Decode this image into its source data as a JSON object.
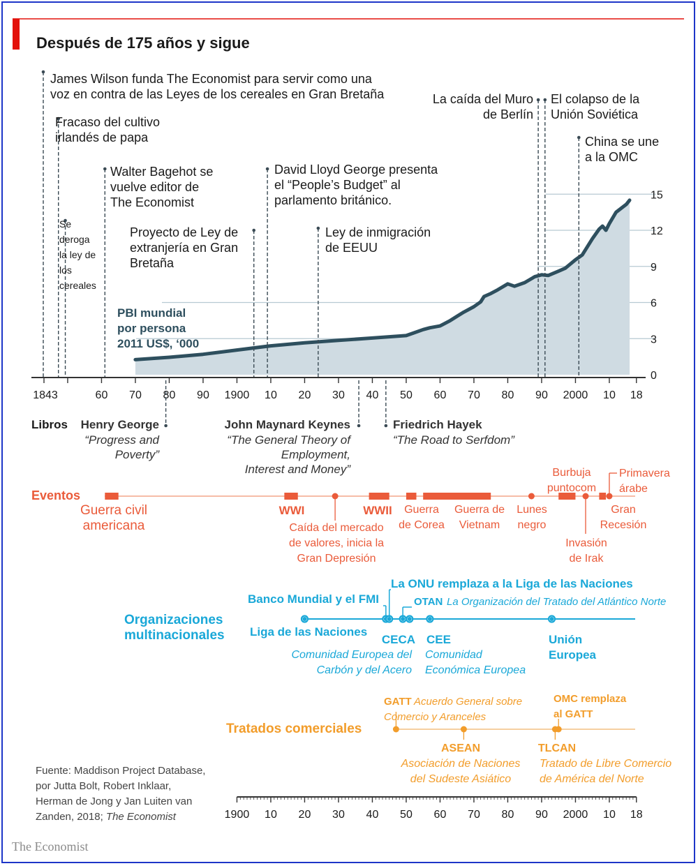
{
  "title": "Después de 175 años y sigue",
  "colors": {
    "accent_red": "#e3120b",
    "dark_blue": "#2e4f5e",
    "area": "#cfdbe2",
    "grid": "#b6c9d2",
    "events": "#ea5b3a",
    "events_bar": "#f3a58a",
    "orgs": "#1aa8d8",
    "trade": "#f29d2b",
    "ink": "#1a1a1a"
  },
  "chart_data": {
    "type": "area",
    "title": "Después de 175 años y sigue",
    "series_label": [
      "PBI mundial",
      "por persona",
      "2011 US$, ‘000"
    ],
    "xlabel": "",
    "ylabel": "PBI mundial por persona 2011 US$, ‘000",
    "xlim": [
      1843,
      2018
    ],
    "ylim": [
      0,
      15
    ],
    "x_ticks": [
      {
        "year": 1843,
        "label": "1843"
      },
      {
        "year": 1860,
        "label": "60"
      },
      {
        "year": 1870,
        "label": "70"
      },
      {
        "year": 1880,
        "label": "80"
      },
      {
        "year": 1890,
        "label": "90"
      },
      {
        "year": 1900,
        "label": "1900"
      },
      {
        "year": 1910,
        "label": "10"
      },
      {
        "year": 1920,
        "label": "20"
      },
      {
        "year": 1930,
        "label": "30"
      },
      {
        "year": 1940,
        "label": "40"
      },
      {
        "year": 1950,
        "label": "50"
      },
      {
        "year": 1960,
        "label": "60"
      },
      {
        "year": 1970,
        "label": "70"
      },
      {
        "year": 1980,
        "label": "80"
      },
      {
        "year": 1990,
        "label": "90"
      },
      {
        "year": 2000,
        "label": "2000"
      },
      {
        "year": 2010,
        "label": "10"
      },
      {
        "year": 2018,
        "label": "18"
      }
    ],
    "y_ticks": [
      {
        "value": 0,
        "label": "0"
      },
      {
        "value": 3,
        "label": "3"
      },
      {
        "value": 6,
        "label": "6"
      },
      {
        "value": 9,
        "label": "9"
      },
      {
        "value": 12,
        "label": "12"
      },
      {
        "value": 15,
        "label": "15"
      }
    ],
    "x": [
      1870,
      1880,
      1890,
      1900,
      1910,
      1920,
      1930,
      1940,
      1950,
      1952,
      1955,
      1957,
      1960,
      1963,
      1965,
      1967,
      1970,
      1972,
      1973,
      1975,
      1977,
      1980,
      1982,
      1985,
      1988,
      1990,
      1992,
      1995,
      1997,
      2000,
      2002,
      2005,
      2007,
      2008,
      2009,
      2010,
      2012,
      2015,
      2016
    ],
    "values": [
      1.25,
      1.45,
      1.7,
      2.05,
      2.4,
      2.65,
      2.85,
      3.05,
      3.25,
      3.45,
      3.75,
      3.9,
      4.05,
      4.5,
      4.85,
      5.2,
      5.65,
      6.05,
      6.5,
      6.75,
      7.05,
      7.55,
      7.35,
      7.65,
      8.15,
      8.3,
      8.25,
      8.6,
      8.85,
      9.55,
      9.95,
      11.3,
      12.1,
      12.35,
      12.0,
      12.55,
      13.5,
      14.15,
      14.5
    ],
    "annotations": [
      {
        "year": 1843,
        "lines": [
          "James Wilson funda The Economist para servir como una",
          "voz en contra de las Leyes de los cereales en Gran Bretaña"
        ]
      },
      {
        "year": 1845,
        "lines": [
          "Fracaso del cultivo",
          "irlandés de papa"
        ]
      },
      {
        "year": 1846,
        "lines": [
          "Se",
          "deroga",
          "la ley de",
          "los",
          "cereales"
        ]
      },
      {
        "year": 1861,
        "lines": [
          "Walter Bagehot se",
          "vuelve editor de",
          "The Economist"
        ]
      },
      {
        "year": 1905,
        "lines": [
          "Proyecto de Ley de",
          "extranjería en Gran",
          "Bretaña"
        ]
      },
      {
        "year": 1909,
        "lines": [
          "David Lloyd George presenta",
          "el “People’s Budget” al",
          "parlamento británico."
        ]
      },
      {
        "year": 1924,
        "lines": [
          "Ley de inmigración",
          "de EEUU"
        ]
      },
      {
        "year": 1989,
        "lines": [
          "La caída del Muro",
          "de Berlín"
        ]
      },
      {
        "year": 1991,
        "lines": [
          "El colapso de la",
          "Unión Soviética"
        ]
      },
      {
        "year": 2001,
        "lines": [
          "China se une",
          "a la OMC"
        ]
      }
    ]
  },
  "books": {
    "label": "Libros",
    "items": [
      {
        "year": 1879,
        "author": "Henry George",
        "title": [
          "“Progress and",
          "Poverty”"
        ]
      },
      {
        "year": 1936,
        "author": "John Maynard Keynes",
        "title": [
          "“The General Theory of",
          "Employment,",
          "Interest and Money”"
        ]
      },
      {
        "year": 1944,
        "author": "Friedrich Hayek",
        "title": [
          "“The Road to Serfdom”"
        ]
      }
    ]
  },
  "events": {
    "label": "Eventos",
    "bars": [
      {
        "start": 1861,
        "end": 1865,
        "text": [
          "Guerra civil",
          "americana"
        ]
      },
      {
        "start": 1914,
        "end": 1918,
        "text": [
          "WWI"
        ],
        "bold": true
      },
      {
        "start": 1939,
        "end": 1945,
        "text": [
          "WWII"
        ],
        "bold": true
      },
      {
        "start": 1950,
        "end": 1953,
        "text": [
          "Guerra",
          "de Corea"
        ]
      },
      {
        "start": 1955,
        "end": 1975,
        "text": [
          "Guerra de",
          "Vietnam"
        ]
      },
      {
        "start": 1995,
        "end": 2000,
        "text": [
          "Burbuja",
          "puntocom"
        ]
      },
      {
        "start": 2007,
        "end": 2009,
        "text": [
          "Gran",
          "Recesión"
        ]
      }
    ],
    "points": [
      {
        "year": 1929,
        "text": [
          "Caída del mercado",
          "de valores, inicia la",
          "Gran Depresión"
        ]
      },
      {
        "year": 1987,
        "text": [
          "Lunes",
          "negro"
        ]
      },
      {
        "year": 2003,
        "text": [
          "Invasión",
          "de Irak"
        ]
      },
      {
        "year": 2010,
        "text": [
          "Primavera",
          "árabe"
        ]
      }
    ]
  },
  "organizations": {
    "label": [
      "Organizaciones",
      "multinacionales"
    ],
    "points": [
      {
        "year": 1920,
        "bold": [
          "Liga de las Naciones"
        ],
        "italic": []
      },
      {
        "year": 1944,
        "bold": [
          "Banco Mundial y el FMI"
        ],
        "italic": []
      },
      {
        "year": 1945,
        "bold": [
          "La ONU remplaza a la Liga de las Naciones"
        ],
        "italic": []
      },
      {
        "year": 1949,
        "bold": [
          "OTAN"
        ],
        "italic": [
          "La Organización del Tratado del Atlántico Norte"
        ]
      },
      {
        "year": 1951,
        "bold": [
          "CECA"
        ],
        "italic": [
          "Comunidad Europea del",
          "Carbón y del Acero"
        ]
      },
      {
        "year": 1957,
        "bold": [
          "CEE"
        ],
        "italic": [
          "Comunidad",
          "Económica Europea"
        ]
      },
      {
        "year": 1993,
        "bold": [
          "Unión",
          "Europea"
        ],
        "italic": []
      }
    ]
  },
  "trade": {
    "label": "Tratados comerciales",
    "points": [
      {
        "year": 1947,
        "bold": "GATT",
        "italic": [
          "Acuerdo General sobre",
          "Comercio y Aranceles"
        ]
      },
      {
        "year": 1967,
        "bold": "ASEAN",
        "italic": [
          "Asociación de Naciones",
          "del Sudeste Asiático"
        ]
      },
      {
        "year": 1994,
        "bold": "TLCAN",
        "italic": [
          "Tratado de Libre Comercio",
          "de América del Norte"
        ]
      },
      {
        "year": 1995,
        "bold": "OMC remplaza al GATT",
        "italic": []
      }
    ]
  },
  "bottom_axis": {
    "ticks": [
      {
        "year": 1900,
        "label": "1900"
      },
      {
        "year": 1910,
        "label": "10"
      },
      {
        "year": 1920,
        "label": "20"
      },
      {
        "year": 1930,
        "label": "30"
      },
      {
        "year": 1940,
        "label": "40"
      },
      {
        "year": 1950,
        "label": "50"
      },
      {
        "year": 1960,
        "label": "60"
      },
      {
        "year": 1970,
        "label": "70"
      },
      {
        "year": 1980,
        "label": "80"
      },
      {
        "year": 1990,
        "label": "90"
      },
      {
        "year": 2000,
        "label": "2000"
      },
      {
        "year": 2010,
        "label": "10"
      },
      {
        "year": 2018,
        "label": "18"
      }
    ]
  },
  "source": {
    "lines": [
      "Fuente: Maddison Project Database,",
      "por Jutta Bolt, Robert Inklaar,",
      "Herman de Jong y Jan Luiten van"
    ],
    "last_line_prefix": "Zanden, 2018; ",
    "last_line_italic": "The Economist"
  },
  "brand": "The Economist"
}
